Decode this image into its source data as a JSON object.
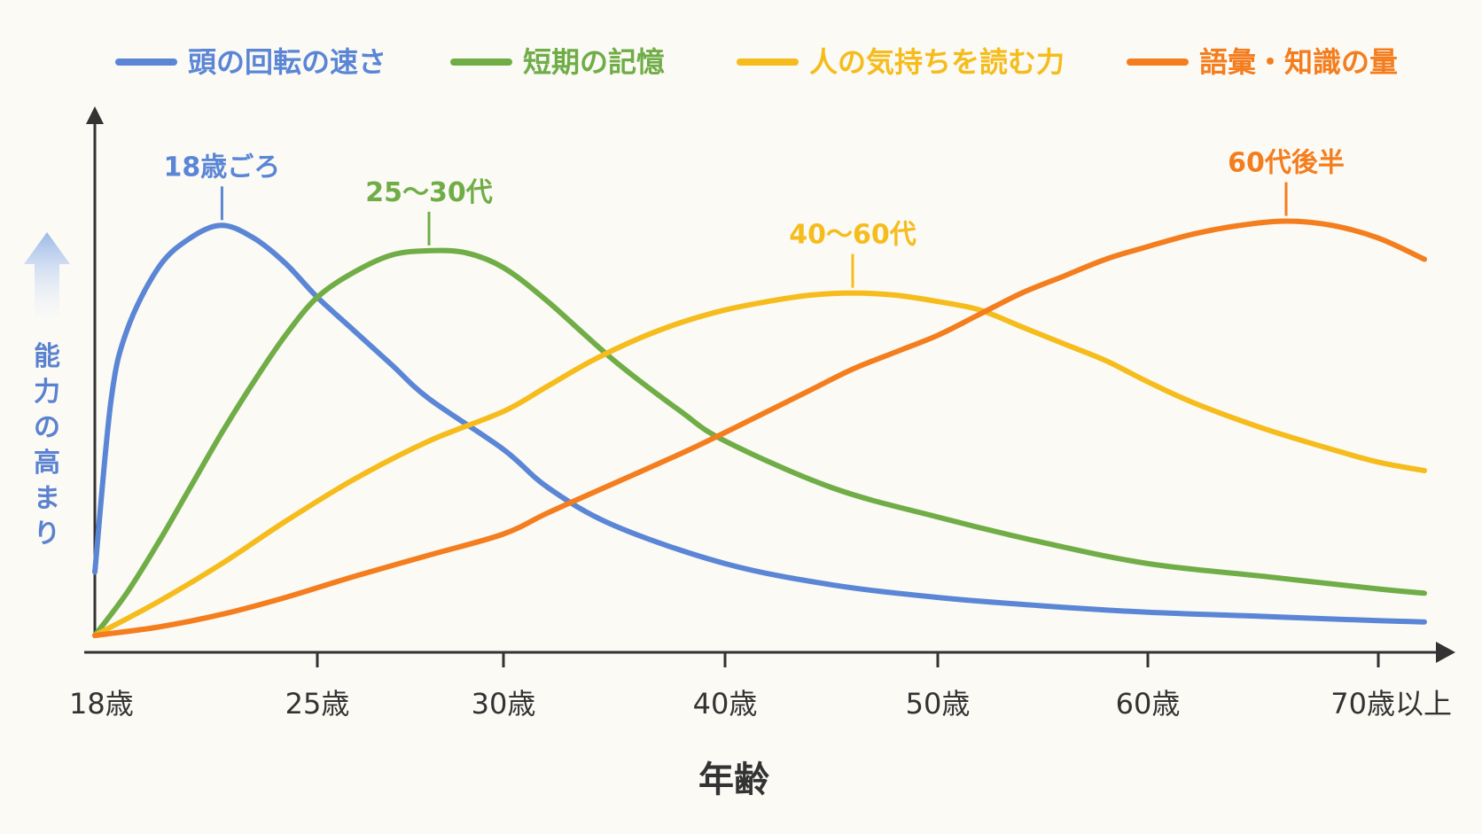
{
  "chart_data": {
    "type": "line",
    "xlabel": "年齢",
    "ylabel": "能力の高まり",
    "x_ticks": [
      "18歳",
      "25歳",
      "30歳",
      "40歳",
      "50歳",
      "60歳",
      "70歳以上"
    ],
    "x_tick_values": [
      18,
      25,
      30,
      40,
      50,
      60,
      70
    ],
    "xlim": [
      18,
      72
    ],
    "ylim": [
      0,
      100
    ],
    "grid": false,
    "legend_position": "top",
    "series": [
      {
        "name": "頭の回転の速さ",
        "color": "#5b86d6",
        "peak_label": "18歳ごろ",
        "peak_x": 22,
        "points": [
          [
            18,
            15
          ],
          [
            18.5,
            55
          ],
          [
            19,
            72
          ],
          [
            20,
            87
          ],
          [
            21,
            94
          ],
          [
            22,
            97
          ],
          [
            23,
            94
          ],
          [
            24,
            88
          ],
          [
            25,
            80
          ],
          [
            26,
            72
          ],
          [
            27,
            64
          ],
          [
            28,
            56
          ],
          [
            30,
            44
          ],
          [
            32,
            35
          ],
          [
            35,
            26
          ],
          [
            40,
            17
          ],
          [
            45,
            12
          ],
          [
            50,
            9
          ],
          [
            55,
            7
          ],
          [
            60,
            5.5
          ],
          [
            65,
            4.5
          ],
          [
            70,
            3.5
          ],
          [
            72,
            3.2
          ]
        ]
      },
      {
        "name": "短期の記憶",
        "color": "#70ad47",
        "peak_label": "25～30代",
        "peak_x": 28,
        "points": [
          [
            18,
            0
          ],
          [
            19,
            10
          ],
          [
            20,
            22
          ],
          [
            21,
            35
          ],
          [
            22,
            48
          ],
          [
            23,
            60
          ],
          [
            24,
            71
          ],
          [
            25,
            80
          ],
          [
            26,
            86
          ],
          [
            27,
            90
          ],
          [
            28,
            91
          ],
          [
            29,
            90.5
          ],
          [
            30,
            87
          ],
          [
            32,
            79
          ],
          [
            35,
            65
          ],
          [
            38,
            53
          ],
          [
            40,
            46
          ],
          [
            45,
            35
          ],
          [
            50,
            28
          ],
          [
            55,
            22
          ],
          [
            60,
            17
          ],
          [
            65,
            14
          ],
          [
            70,
            11
          ],
          [
            72,
            10
          ]
        ]
      },
      {
        "name": "人の気持ちを読む力",
        "color": "#f5bc1c",
        "peak_label": "40～60代",
        "peak_x": 46,
        "points": [
          [
            18,
            0
          ],
          [
            20,
            8
          ],
          [
            22,
            17
          ],
          [
            24,
            27
          ],
          [
            26,
            37
          ],
          [
            28,
            46
          ],
          [
            30,
            53
          ],
          [
            32,
            59
          ],
          [
            34,
            65
          ],
          [
            36,
            70
          ],
          [
            38,
            74
          ],
          [
            40,
            77
          ],
          [
            42,
            79
          ],
          [
            44,
            80.5
          ],
          [
            46,
            81
          ],
          [
            48,
            80.5
          ],
          [
            50,
            79
          ],
          [
            52,
            77
          ],
          [
            54,
            73
          ],
          [
            56,
            69
          ],
          [
            58,
            65
          ],
          [
            60,
            60
          ],
          [
            62,
            55
          ],
          [
            65,
            49
          ],
          [
            68,
            44
          ],
          [
            70,
            41
          ],
          [
            72,
            39
          ]
        ]
      },
      {
        "name": "語彙・知識の量",
        "color": "#f47d1e",
        "peak_label": "60代後半",
        "peak_x": 66,
        "points": [
          [
            18,
            0
          ],
          [
            20,
            2
          ],
          [
            22,
            5
          ],
          [
            24,
            9
          ],
          [
            26,
            14
          ],
          [
            28,
            19
          ],
          [
            30,
            24
          ],
          [
            32,
            29
          ],
          [
            35,
            36
          ],
          [
            38,
            43
          ],
          [
            40,
            48
          ],
          [
            42,
            53
          ],
          [
            44,
            58
          ],
          [
            46,
            63
          ],
          [
            48,
            67
          ],
          [
            50,
            71
          ],
          [
            52,
            76
          ],
          [
            54,
            81
          ],
          [
            56,
            85
          ],
          [
            58,
            89
          ],
          [
            60,
            92
          ],
          [
            62,
            95
          ],
          [
            64,
            97
          ],
          [
            66,
            98
          ],
          [
            68,
            97
          ],
          [
            70,
            94
          ],
          [
            72,
            89
          ]
        ]
      }
    ]
  }
}
